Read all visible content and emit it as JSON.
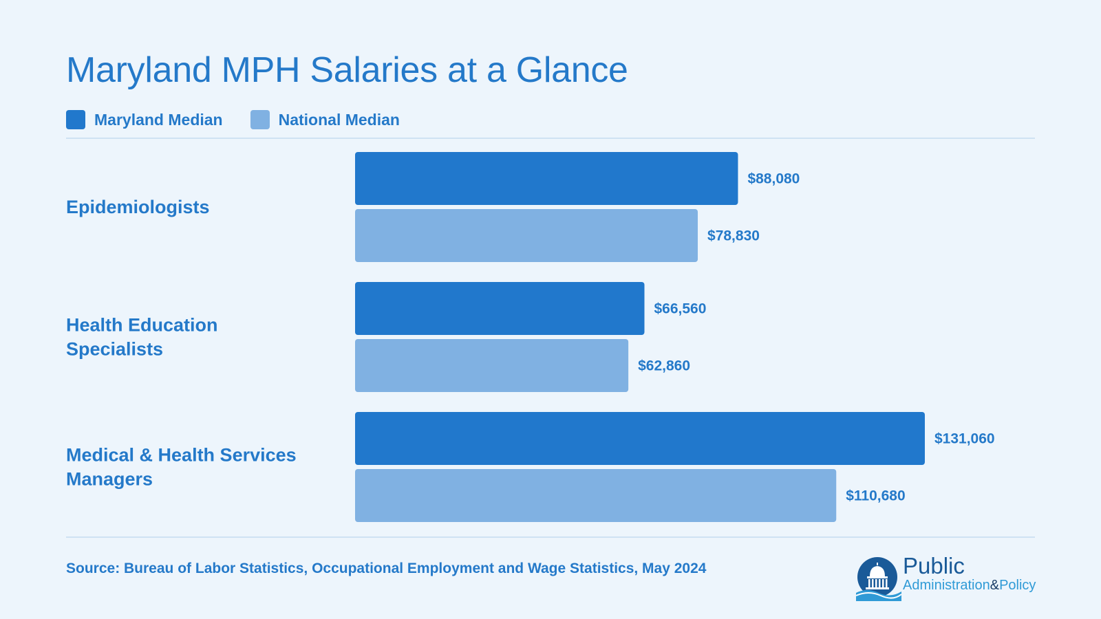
{
  "title": "Maryland MPH Salaries at a Glance",
  "legend": [
    {
      "label": "Maryland Median",
      "color": "#2178cc"
    },
    {
      "label": "National Median",
      "color": "#80b1e2"
    }
  ],
  "chart_data": {
    "type": "bar",
    "orientation": "horizontal",
    "categories": [
      [
        "Epidemiologists"
      ],
      [
        "Health Education",
        "Specialists"
      ],
      [
        "Medical & Health Services",
        "Managers"
      ]
    ],
    "series": [
      {
        "name": "Maryland Median",
        "values": [
          88080,
          66560,
          131060
        ],
        "labels": [
          "$88,080",
          "$66,560",
          "$131,060"
        ],
        "color": "#2178cc"
      },
      {
        "name": "National Median",
        "values": [
          78830,
          62860,
          110680
        ],
        "labels": [
          "$78,830",
          "$62,860",
          "$110,680"
        ],
        "color": "#80b1e2"
      }
    ],
    "xlim": [
      0,
      131060
    ],
    "grid": false,
    "legend_position": "top-left"
  },
  "source": "Source: Bureau of Labor Statistics, Occupational Employment and Wage Statistics, May 2024",
  "logo": {
    "line1": "Public",
    "line2_a": "Administration",
    "line2_amp": "&",
    "line2_b": "Policy"
  }
}
